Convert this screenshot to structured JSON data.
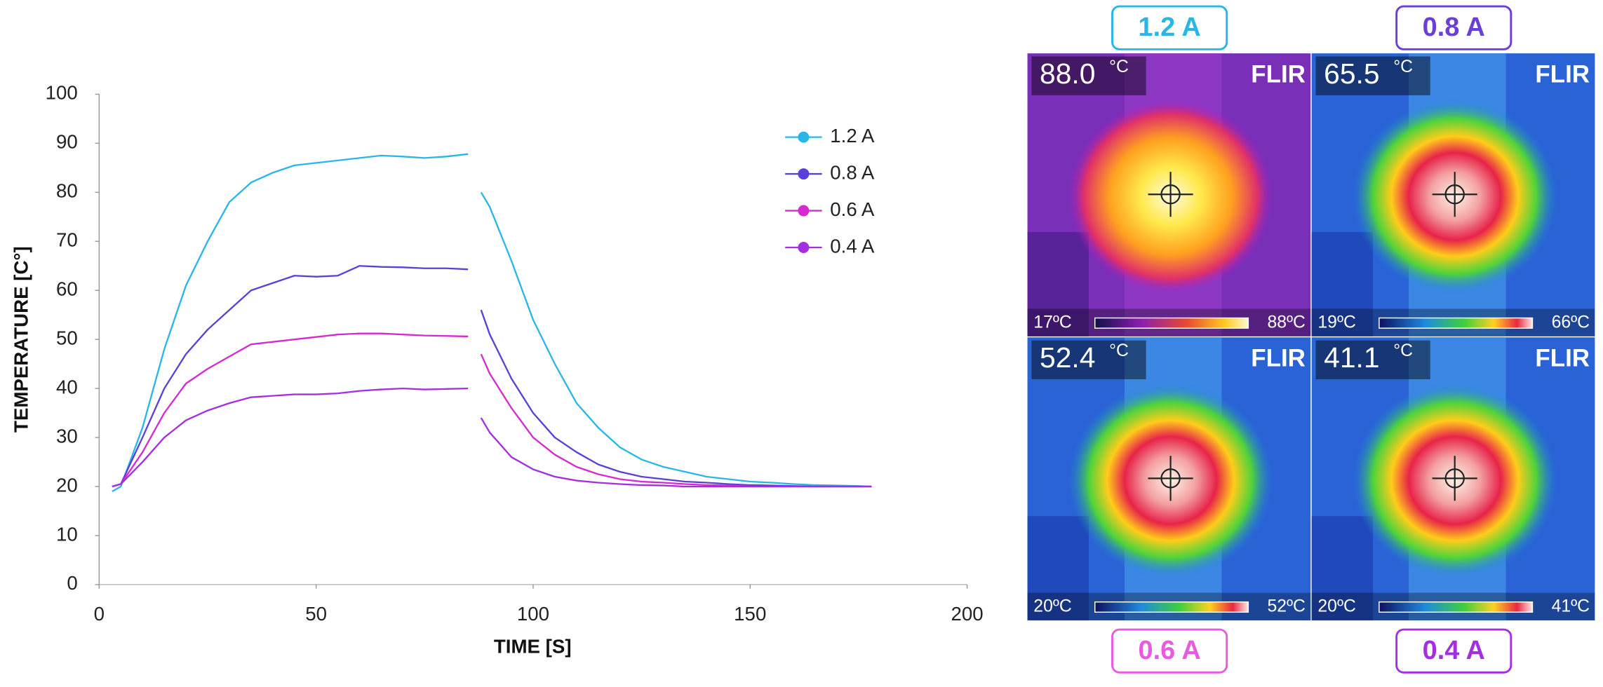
{
  "chart_data": {
    "type": "line",
    "xlabel": "TIME [S]",
    "ylabel": "TEMPERATURE [C°]",
    "x": [
      3,
      5,
      10,
      15,
      20,
      25,
      30,
      35,
      40,
      45,
      50,
      55,
      60,
      65,
      70,
      75,
      80,
      85,
      86.5,
      88,
      90,
      95,
      100,
      105,
      110,
      115,
      120,
      125,
      130,
      135,
      140,
      145,
      150,
      155,
      160,
      165,
      170,
      175,
      178
    ],
    "series": [
      {
        "name": "1.2 A",
        "color": "#29b6e6",
        "values": [
          19,
          20,
          32,
          48,
          61,
          70,
          78,
          82,
          84,
          85.5,
          86,
          86.5,
          87,
          87.5,
          87.3,
          87,
          87.3,
          87.8,
          null,
          80,
          77,
          66,
          54,
          45,
          37,
          32,
          28,
          25.5,
          24,
          23,
          22,
          21.5,
          21,
          20.8,
          20.5,
          20.3,
          20.2,
          20.1,
          20
        ]
      },
      {
        "name": "0.8 A",
        "color": "#5b3fd9",
        "values": [
          20,
          20.5,
          30,
          40,
          47,
          52,
          56,
          60,
          61.5,
          63,
          62.8,
          63,
          65,
          64.8,
          64.7,
          64.5,
          64.5,
          64.3,
          null,
          56,
          51,
          42,
          35,
          30,
          27,
          24.5,
          23,
          22,
          21.5,
          21,
          20.8,
          20.5,
          20.3,
          20.2,
          20.1,
          20,
          20,
          20,
          20
        ]
      },
      {
        "name": "0.6 A",
        "color": "#d62ad0",
        "values": [
          20,
          20.5,
          27,
          35,
          41,
          44,
          46.5,
          49,
          49.5,
          50,
          50.5,
          51,
          51.2,
          51.2,
          51,
          50.8,
          50.7,
          50.6,
          null,
          47,
          43,
          36,
          30,
          26.5,
          24,
          22.5,
          21.5,
          21,
          20.8,
          20.5,
          20.3,
          20.2,
          20,
          20,
          20,
          20,
          20,
          20,
          20
        ]
      },
      {
        "name": "0.4 A",
        "color": "#a330e0",
        "values": [
          20,
          20.5,
          25,
          30,
          33.5,
          35.5,
          37,
          38.2,
          38.5,
          38.8,
          38.8,
          39,
          39.5,
          39.8,
          40,
          39.8,
          39.9,
          40,
          null,
          34,
          31,
          26,
          23.5,
          22,
          21.2,
          20.8,
          20.5,
          20.3,
          20.2,
          20,
          20,
          20,
          20,
          20,
          20,
          20,
          20,
          20,
          20
        ]
      }
    ],
    "xlim": [
      0,
      200
    ],
    "xticks": [
      0,
      50,
      100,
      150,
      200
    ],
    "ylim": [
      0,
      100
    ],
    "yticks": [
      0,
      10,
      20,
      30,
      40,
      50,
      60,
      70,
      80,
      90,
      100
    ],
    "legend": "upper-right"
  },
  "thermal_images": [
    {
      "label": "1.2 A",
      "color": "#29b6e6",
      "palette": "iron",
      "reading": "88.0",
      "unit": "°C",
      "brand": "FLIR",
      "scale_min": "17ºC",
      "scale_max": "88ºC"
    },
    {
      "label": "0.8 A",
      "color": "#6a3fd9",
      "palette": "rainbow",
      "reading": "65.5",
      "unit": "°C",
      "brand": "FLIR",
      "scale_min": "19ºC",
      "scale_max": "66ºC"
    },
    {
      "label": "0.6 A",
      "color": "#e85be0",
      "palette": "rainbow",
      "reading": "52.4",
      "unit": "°C",
      "brand": "FLIR",
      "scale_min": "20ºC",
      "scale_max": "52ºC"
    },
    {
      "label": "0.4 A",
      "color": "#a330e0",
      "palette": "rainbow",
      "reading": "41.1",
      "unit": "°C",
      "brand": "FLIR",
      "scale_min": "20ºC",
      "scale_max": "41ºC"
    }
  ]
}
